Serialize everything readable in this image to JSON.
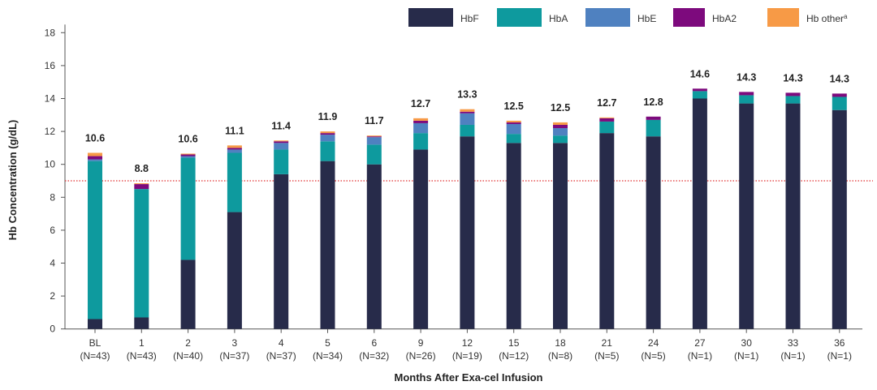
{
  "chart_data": {
    "type": "bar",
    "stacked": true,
    "title": "",
    "xlabel": "Months After Exa-cel Infusion",
    "ylabel": "Hb Concentration (g/dL)",
    "ylim": [
      0,
      18
    ],
    "yticks": [
      0,
      2,
      4,
      6,
      8,
      10,
      12,
      14,
      16,
      18
    ],
    "reference_line": {
      "value": 9,
      "color": "#e03030",
      "style": "dotted"
    },
    "legend_position": "top-right",
    "categories": [
      "BL",
      "1",
      "2",
      "3",
      "4",
      "5",
      "6",
      "9",
      "12",
      "15",
      "18",
      "21",
      "24",
      "27",
      "30",
      "33",
      "36"
    ],
    "n_labels": [
      "(N=43)",
      "(N=43)",
      "(N=40)",
      "(N=37)",
      "(N=37)",
      "(N=34)",
      "(N=32)",
      "(N=26)",
      "(N=19)",
      "(N=12)",
      "(N=8)",
      "(N=5)",
      "(N=5)",
      "(N=1)",
      "(N=1)",
      "(N=1)",
      "(N=1)"
    ],
    "totals": [
      "10.6",
      "8.8",
      "10.6",
      "11.1",
      "11.4",
      "11.9",
      "11.7",
      "12.7",
      "13.3",
      "12.5",
      "12.5",
      "12.7",
      "12.8",
      "14.6",
      "14.3",
      "14.3",
      "14.3"
    ],
    "series": [
      {
        "name": "HbF",
        "legend": "HbF",
        "color": "#272b4a",
        "values": [
          0.6,
          0.7,
          4.2,
          7.1,
          9.4,
          10.2,
          10.0,
          10.9,
          11.7,
          11.3,
          11.3,
          11.9,
          11.7,
          14.0,
          13.7,
          13.7,
          13.3
        ]
      },
      {
        "name": "HbA",
        "legend": "HbA",
        "color": "#0e9a9e",
        "values": [
          9.6,
          7.8,
          6.2,
          3.6,
          1.5,
          1.2,
          1.2,
          1.0,
          0.7,
          0.55,
          0.45,
          0.7,
          1.0,
          0.45,
          0.5,
          0.45,
          0.8
        ]
      },
      {
        "name": "HbE",
        "legend": "HbE",
        "color": "#4f81c0",
        "values": [
          0.1,
          0,
          0.1,
          0.2,
          0.4,
          0.4,
          0.45,
          0.6,
          0.7,
          0.6,
          0.45,
          0,
          0,
          0,
          0,
          0,
          0
        ]
      },
      {
        "name": "HbA2",
        "legend": "HbA2",
        "color": "#7d0a7d",
        "values": [
          0.2,
          0.3,
          0.1,
          0.1,
          0.1,
          0.1,
          0.05,
          0.15,
          0.1,
          0.1,
          0.2,
          0.2,
          0.2,
          0.15,
          0.2,
          0.2,
          0.2
        ]
      },
      {
        "name": "Hb other",
        "legend": "Hb other",
        "legend_sup": "a",
        "color": "#f79a46",
        "values": [
          0.2,
          0.05,
          0.05,
          0.15,
          0.05,
          0.1,
          0.05,
          0.15,
          0.15,
          0.1,
          0.15,
          0.05,
          0,
          0,
          0,
          0,
          0
        ]
      }
    ]
  }
}
